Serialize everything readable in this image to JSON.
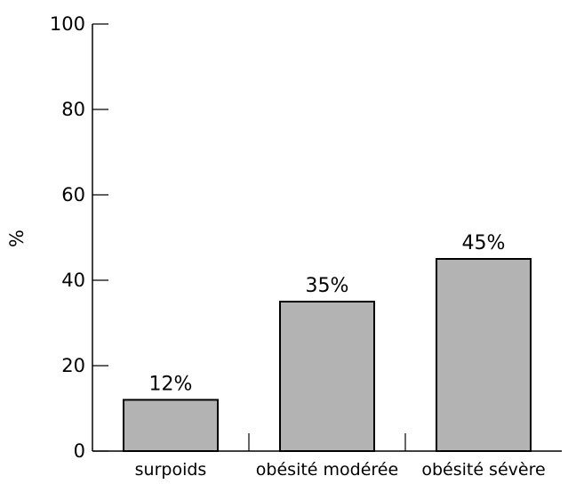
{
  "chart_data": {
    "type": "bar",
    "categories": [
      "surpoids",
      "obésité modérée",
      "obésité sévère"
    ],
    "values": [
      12,
      35,
      45
    ],
    "value_labels": [
      "12%",
      "35%",
      "45%"
    ],
    "title": "",
    "xlabel": "",
    "ylabel": "%",
    "ylim": [
      0,
      100
    ],
    "yticks": [
      0,
      20,
      40,
      60,
      80,
      100
    ],
    "ytick_labels": [
      "0",
      "20",
      "40",
      "60",
      "80",
      "100"
    ],
    "grid": false,
    "bar_color": "#b3b3b3",
    "bar_edge_color": "#000000"
  }
}
